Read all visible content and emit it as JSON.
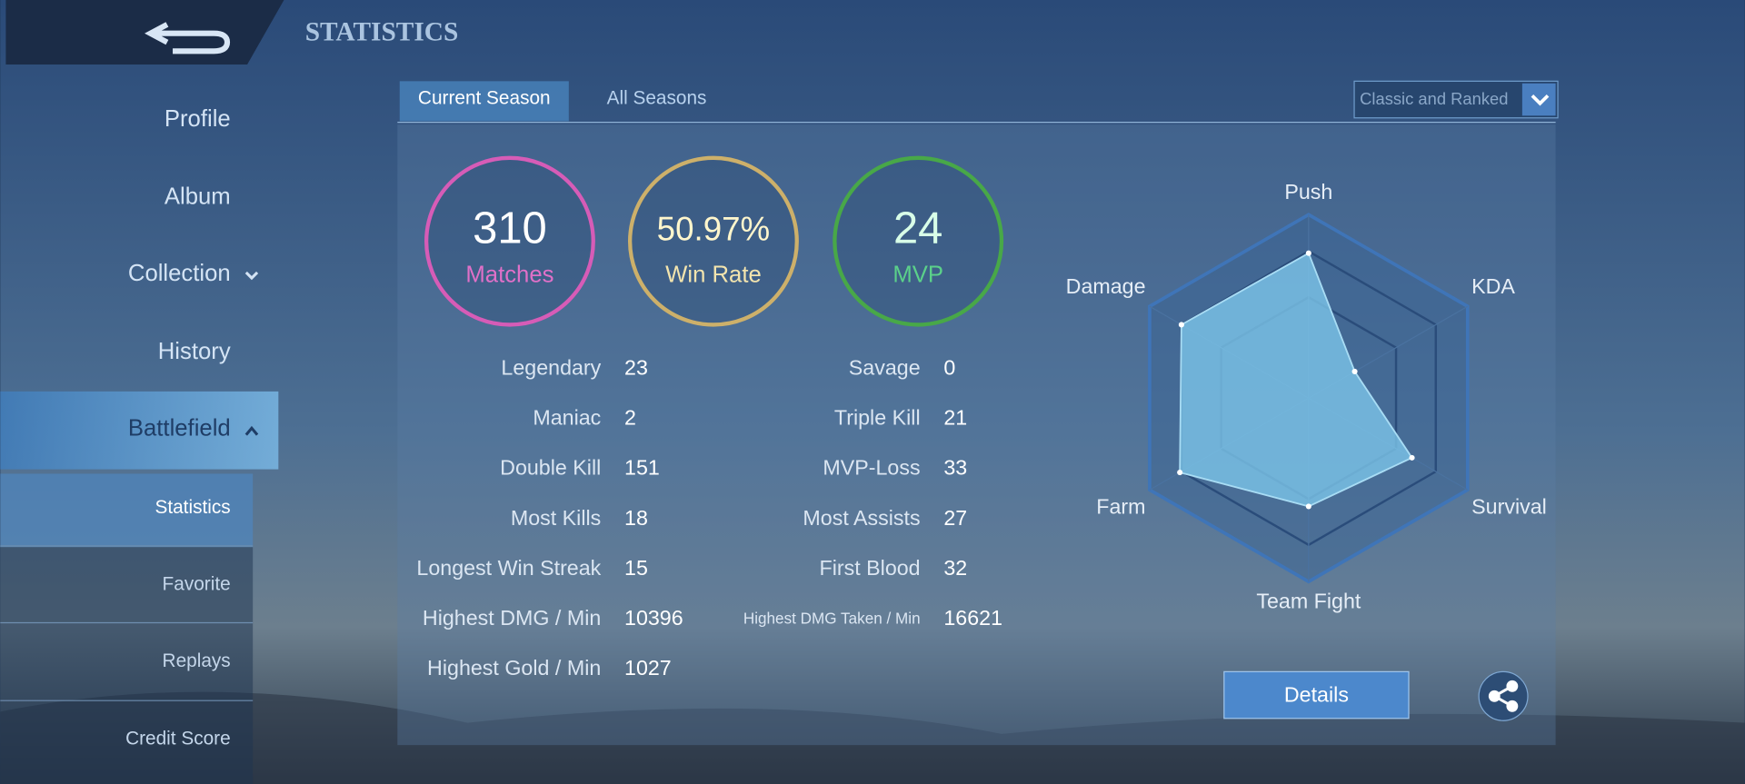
{
  "header": {
    "title": "STATISTICS"
  },
  "sidebar": {
    "items": [
      "Profile",
      "Album",
      "Collection",
      "History",
      "Battlefield"
    ],
    "sub_items": [
      "Statistics",
      "Favorite",
      "Replays",
      "Credit Score"
    ]
  },
  "tabs": [
    "Current Season",
    "All Seasons"
  ],
  "mode_select": "Classic and Ranked",
  "summary": [
    {
      "value": "310",
      "label": "Matches"
    },
    {
      "value": "50.97%",
      "label": "Win Rate"
    },
    {
      "value": "24",
      "label": "MVP"
    }
  ],
  "stats_left": [
    {
      "label": "Legendary",
      "value": 23
    },
    {
      "label": "Maniac",
      "value": 2
    },
    {
      "label": "Double Kill",
      "value": 151
    },
    {
      "label": "Most Kills",
      "value": 18
    },
    {
      "label": "Longest Win Streak",
      "value": 15
    },
    {
      "label": "Highest DMG / Min",
      "value": 10396
    },
    {
      "label": "Highest Gold / Min",
      "value": 1027
    }
  ],
  "stats_right": [
    {
      "label": "Savage",
      "value": 0
    },
    {
      "label": "Triple Kill",
      "value": 21
    },
    {
      "label": "MVP-Loss",
      "value": 33
    },
    {
      "label": "Most Assists",
      "value": 27
    },
    {
      "label": "First Blood",
      "value": 32
    },
    {
      "label": "Highest DMG Taken / Min",
      "value": 16621
    }
  ],
  "radar": {
    "axes": [
      "Push",
      "KDA",
      "Survival",
      "Team Fight",
      "Farm",
      "Damage"
    ],
    "values": [
      79,
      29,
      65,
      59,
      81,
      80
    ],
    "max": 100
  },
  "buttons": {
    "details": "Details"
  }
}
